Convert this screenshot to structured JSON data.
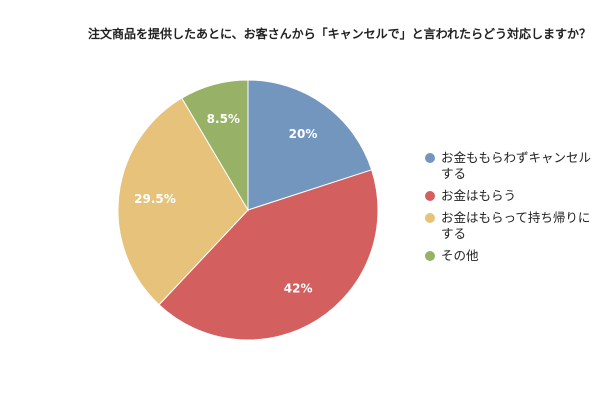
{
  "chart_data": {
    "type": "pie",
    "title": "注文商品を提供したあとに、お客さんから「キャンセルで」と言われたらどう対応しますか？",
    "categories": [
      "お金ももらわずキャンセルする",
      "お金はもらう",
      "お金はもらって持ち帰りにする",
      "その他"
    ],
    "values": [
      20,
      42,
      29.5,
      8.5
    ],
    "value_labels": [
      "20%",
      "42%",
      "29.5%",
      "8.5%"
    ],
    "colors": [
      "#7396be",
      "#d35f5f",
      "#e6c27a",
      "#97b266"
    ],
    "legend": "right"
  }
}
